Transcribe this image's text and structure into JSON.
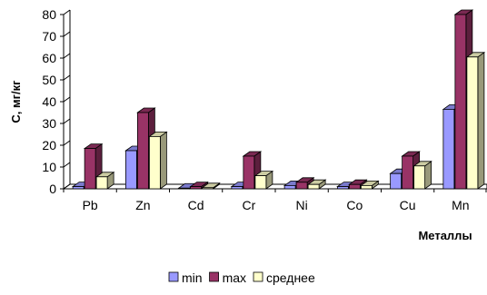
{
  "chart_data": {
    "type": "bar",
    "title": "",
    "xlabel": "Металлы",
    "ylabel": "С, мг/кг",
    "ylim": [
      0,
      80
    ],
    "yticks": [
      0,
      10,
      20,
      30,
      40,
      50,
      60,
      70,
      80
    ],
    "categories": [
      "Pb",
      "Zn",
      "Cd",
      "Cr",
      "Ni",
      "Co",
      "Cu",
      "Mn"
    ],
    "series": [
      {
        "name": "min",
        "color": "#9999ff",
        "values": [
          1,
          17.5,
          0.3,
          1,
          1.5,
          1,
          7,
          36.5
        ]
      },
      {
        "name": "max",
        "color": "#993366",
        "values": [
          18.5,
          35,
          1,
          15,
          3,
          2,
          15,
          80
        ]
      },
      {
        "name": "среднее",
        "color": "#ffffcc",
        "values": [
          5.5,
          24,
          0.5,
          6,
          2,
          1.5,
          10.5,
          60.5
        ]
      }
    ],
    "legend_position": "bottom",
    "grid": false,
    "style": "3d-clustered-column"
  }
}
